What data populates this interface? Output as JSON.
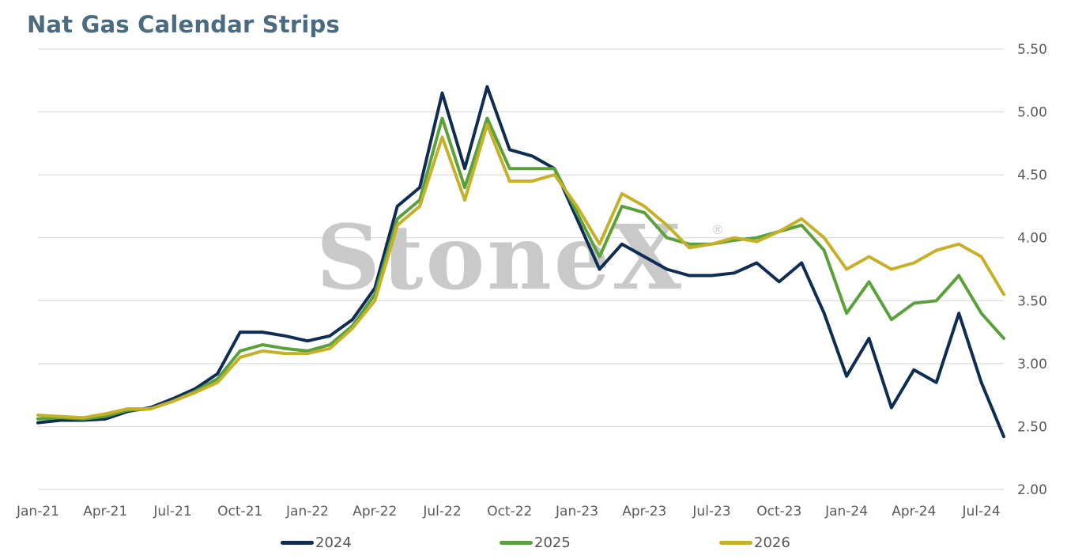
{
  "title": "Nat Gas Calendar Strips",
  "watermark": "StoneX",
  "watermark_mark": "®",
  "chart_data": {
    "type": "line",
    "title": "Nat Gas Calendar Strips",
    "ylim": [
      2.0,
      5.5
    ],
    "yticks": [
      "5.50",
      "5.00",
      "4.50",
      "4.00",
      "3.50",
      "3.00",
      "2.50",
      "2.00"
    ],
    "y_axis_side": "right",
    "grid": true,
    "legend": "bottom",
    "xticks": [
      "Jan-21",
      "Apr-21",
      "Jul-21",
      "Oct-21",
      "Jan-22",
      "Apr-22",
      "Jul-22",
      "Oct-22",
      "Jan-23",
      "Apr-23",
      "Jul-23",
      "Oct-23",
      "Jan-24",
      "Apr-24",
      "Jul-24"
    ],
    "x_range": [
      "Jan-21",
      "Aug-24"
    ],
    "series": [
      {
        "name": "2024",
        "color": "#0f2d52",
        "points": [
          [
            "Jan-21",
            2.53
          ],
          [
            "Feb-21",
            2.55
          ],
          [
            "Mar-21",
            2.55
          ],
          [
            "Apr-21",
            2.56
          ],
          [
            "May-21",
            2.62
          ],
          [
            "Jun-21",
            2.65
          ],
          [
            "Jul-21",
            2.72
          ],
          [
            "Aug-21",
            2.8
          ],
          [
            "Sep-21",
            2.92
          ],
          [
            "Oct-21",
            3.25
          ],
          [
            "Nov-21",
            3.25
          ],
          [
            "Dec-21",
            3.22
          ],
          [
            "Jan-22",
            3.18
          ],
          [
            "Feb-22",
            3.22
          ],
          [
            "Mar-22",
            3.35
          ],
          [
            "Apr-22",
            3.6
          ],
          [
            "May-22",
            4.25
          ],
          [
            "Jun-22",
            4.4
          ],
          [
            "Jul-22",
            5.15
          ],
          [
            "Aug-22",
            4.55
          ],
          [
            "Sep-22",
            5.2
          ],
          [
            "Oct-22",
            4.7
          ],
          [
            "Nov-22",
            4.65
          ],
          [
            "Dec-22",
            4.55
          ],
          [
            "Jan-23",
            4.15
          ],
          [
            "Feb-23",
            3.75
          ],
          [
            "Mar-23",
            3.95
          ],
          [
            "Apr-23",
            3.85
          ],
          [
            "May-23",
            3.75
          ],
          [
            "Jun-23",
            3.7
          ],
          [
            "Jul-23",
            3.7
          ],
          [
            "Aug-23",
            3.72
          ],
          [
            "Sep-23",
            3.8
          ],
          [
            "Oct-23",
            3.65
          ],
          [
            "Nov-23",
            3.8
          ],
          [
            "Dec-23",
            3.4
          ],
          [
            "Jan-24",
            2.9
          ],
          [
            "Feb-24",
            3.2
          ],
          [
            "Mar-24",
            2.65
          ],
          [
            "Apr-24",
            2.95
          ],
          [
            "May-24",
            2.85
          ],
          [
            "Jun-24",
            3.4
          ],
          [
            "Jul-24",
            2.85
          ],
          [
            "Aug-24",
            2.42
          ]
        ]
      },
      {
        "name": "2025",
        "color": "#5aa13c",
        "points": [
          [
            "Jan-21",
            2.56
          ],
          [
            "Feb-21",
            2.57
          ],
          [
            "Mar-21",
            2.56
          ],
          [
            "Apr-21",
            2.58
          ],
          [
            "May-21",
            2.63
          ],
          [
            "Jun-21",
            2.64
          ],
          [
            "Jul-21",
            2.7
          ],
          [
            "Aug-21",
            2.78
          ],
          [
            "Sep-21",
            2.88
          ],
          [
            "Oct-21",
            3.1
          ],
          [
            "Nov-21",
            3.15
          ],
          [
            "Dec-21",
            3.12
          ],
          [
            "Jan-22",
            3.1
          ],
          [
            "Feb-22",
            3.15
          ],
          [
            "Mar-22",
            3.3
          ],
          [
            "Apr-22",
            3.55
          ],
          [
            "May-22",
            4.15
          ],
          [
            "Jun-22",
            4.3
          ],
          [
            "Jul-22",
            4.95
          ],
          [
            "Aug-22",
            4.4
          ],
          [
            "Sep-22",
            4.95
          ],
          [
            "Oct-22",
            4.55
          ],
          [
            "Nov-22",
            4.55
          ],
          [
            "Dec-22",
            4.55
          ],
          [
            "Jan-23",
            4.2
          ],
          [
            "Feb-23",
            3.85
          ],
          [
            "Mar-23",
            4.25
          ],
          [
            "Apr-23",
            4.2
          ],
          [
            "May-23",
            4.0
          ],
          [
            "Jun-23",
            3.95
          ],
          [
            "Jul-23",
            3.95
          ],
          [
            "Aug-23",
            3.98
          ],
          [
            "Sep-23",
            4.0
          ],
          [
            "Oct-23",
            4.05
          ],
          [
            "Nov-23",
            4.1
          ],
          [
            "Dec-23",
            3.9
          ],
          [
            "Jan-24",
            3.4
          ],
          [
            "Feb-24",
            3.65
          ],
          [
            "Mar-24",
            3.35
          ],
          [
            "Apr-24",
            3.48
          ],
          [
            "May-24",
            3.5
          ],
          [
            "Jun-24",
            3.7
          ],
          [
            "Jul-24",
            3.4
          ],
          [
            "Aug-24",
            3.2
          ]
        ]
      },
      {
        "name": "2026",
        "color": "#c6b02a",
        "points": [
          [
            "Jan-21",
            2.59
          ],
          [
            "Feb-21",
            2.58
          ],
          [
            "Mar-21",
            2.57
          ],
          [
            "Apr-21",
            2.6
          ],
          [
            "May-21",
            2.64
          ],
          [
            "Jun-21",
            2.64
          ],
          [
            "Jul-21",
            2.7
          ],
          [
            "Aug-21",
            2.77
          ],
          [
            "Sep-21",
            2.85
          ],
          [
            "Oct-21",
            3.05
          ],
          [
            "Nov-21",
            3.1
          ],
          [
            "Dec-21",
            3.08
          ],
          [
            "Jan-22",
            3.08
          ],
          [
            "Feb-22",
            3.12
          ],
          [
            "Mar-22",
            3.28
          ],
          [
            "Apr-22",
            3.5
          ],
          [
            "May-22",
            4.1
          ],
          [
            "Jun-22",
            4.25
          ],
          [
            "Jul-22",
            4.8
          ],
          [
            "Aug-22",
            4.3
          ],
          [
            "Sep-22",
            4.9
          ],
          [
            "Oct-22",
            4.45
          ],
          [
            "Nov-22",
            4.45
          ],
          [
            "Dec-22",
            4.5
          ],
          [
            "Jan-23",
            4.25
          ],
          [
            "Feb-23",
            3.95
          ],
          [
            "Mar-23",
            4.35
          ],
          [
            "Apr-23",
            4.25
          ],
          [
            "May-23",
            4.1
          ],
          [
            "Jun-23",
            3.92
          ],
          [
            "Jul-23",
            3.95
          ],
          [
            "Aug-23",
            4.0
          ],
          [
            "Sep-23",
            3.97
          ],
          [
            "Oct-23",
            4.05
          ],
          [
            "Nov-23",
            4.15
          ],
          [
            "Dec-23",
            4.0
          ],
          [
            "Jan-24",
            3.75
          ],
          [
            "Feb-24",
            3.85
          ],
          [
            "Mar-24",
            3.75
          ],
          [
            "Apr-24",
            3.8
          ],
          [
            "May-24",
            3.9
          ],
          [
            "Jun-24",
            3.95
          ],
          [
            "Jul-24",
            3.85
          ],
          [
            "Aug-24",
            3.55
          ]
        ]
      }
    ]
  }
}
